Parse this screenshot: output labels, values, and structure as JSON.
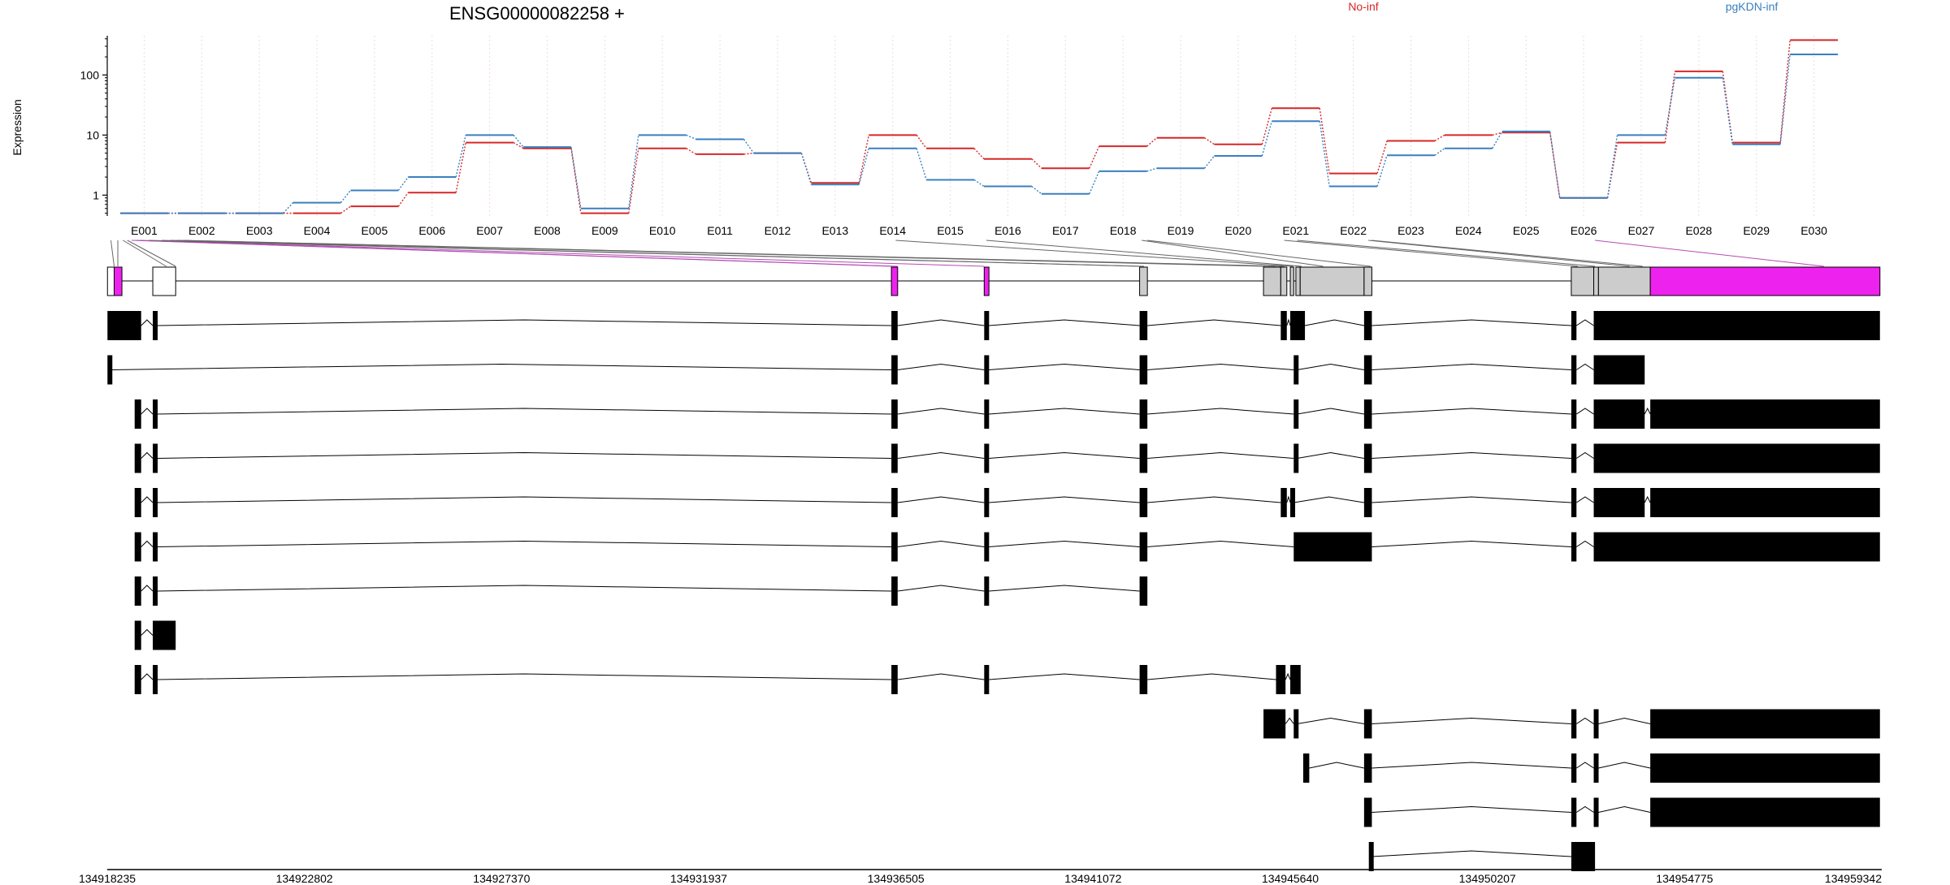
{
  "chart_data": {
    "type": "line",
    "title": "ENSG00000082258 +",
    "ylabel": "Expression",
    "xlabel": "",
    "y_scale": "log",
    "ylim": [
      0.45,
      450
    ],
    "y_ticks": [
      1,
      10,
      100
    ],
    "y_tick_labels": [
      "1",
      "10",
      "100"
    ],
    "grid": "vertical dotted lines at exon bins",
    "legend_position": "top",
    "colors": {
      "no_inf": "#d62728",
      "pgkdn_inf": "#3a7fbf",
      "highlight": "#ee22ee",
      "shared": "#cccccc"
    },
    "categories": [
      "E001",
      "E002",
      "E003",
      "E004",
      "E005",
      "E006",
      "E007",
      "E008",
      "E009",
      "E010",
      "E011",
      "E012",
      "E013",
      "E014",
      "E015",
      "E016",
      "E017",
      "E018",
      "E019",
      "E020",
      "E021",
      "E022",
      "E023",
      "E024",
      "E025",
      "E026",
      "E027",
      "E028",
      "E029",
      "E030"
    ],
    "series": [
      {
        "name": "No-inf",
        "color": "#d62728",
        "values": [
          0.5,
          0.5,
          0.5,
          0.5,
          0.65,
          1.1,
          7.5,
          6.0,
          0.5,
          6.0,
          4.8,
          5.0,
          1.6,
          10.0,
          6.0,
          4.0,
          2.8,
          6.5,
          9.0,
          7.0,
          28,
          2.3,
          8.0,
          10.0,
          11.0,
          0.9,
          7.5,
          115,
          7.5,
          380
        ]
      },
      {
        "name": "pgKDN-inf",
        "color": "#3a7fbf",
        "values": [
          0.5,
          0.5,
          0.5,
          0.75,
          1.2,
          2.0,
          10.0,
          6.3,
          0.6,
          10.0,
          8.5,
          5.0,
          1.5,
          6.0,
          1.8,
          1.4,
          1.05,
          2.5,
          2.8,
          4.5,
          17,
          1.4,
          4.6,
          6.0,
          11.5,
          0.9,
          10.0,
          90,
          7.0,
          220
        ]
      }
    ],
    "genome_axis": {
      "range": [
        134918235,
        134959342
      ],
      "tick_labels": [
        "134918235",
        "134922802",
        "134927370",
        "134931937",
        "134936505",
        "134941072",
        "134945640",
        "134950207",
        "134954775",
        "134959342"
      ]
    },
    "exon_bins": [
      [
        134918240,
        134918395,
        "white"
      ],
      [
        134918395,
        134918575,
        "highlight"
      ],
      [
        134919290,
        134919820,
        "white"
      ],
      [
        134936400,
        134936545,
        "highlight"
      ],
      [
        134938550,
        134938660,
        "highlight"
      ],
      [
        134942150,
        134942330,
        "shared"
      ],
      [
        134945020,
        134945420,
        "shared"
      ],
      [
        134945420,
        134945560,
        "shared"
      ],
      [
        134945640,
        134945720,
        "shared"
      ],
      [
        134945770,
        134945870,
        "shared"
      ],
      [
        134945870,
        134947350,
        "shared"
      ],
      [
        134947350,
        134947530,
        "shared"
      ],
      [
        134952150,
        134952670,
        "shared"
      ],
      [
        134952670,
        134952780,
        "shared"
      ],
      [
        134952780,
        134953980,
        "shared"
      ],
      [
        134953980,
        134959300,
        "highlight"
      ]
    ],
    "exon_bin_connectors": [
      [
        134918320,
        134918395
      ],
      [
        134918480,
        134918480
      ],
      [
        134918600,
        134919600
      ],
      [
        134918700,
        134919820
      ],
      [
        134918800,
        134936400
      ],
      [
        134918900,
        134936545
      ],
      [
        134919000,
        134938550
      ],
      [
        134919200,
        134942150
      ],
      [
        134919500,
        134942250
      ],
      [
        134919700,
        134945050
      ],
      [
        134919850,
        134945300
      ],
      [
        134920000,
        134945500
      ],
      [
        134936500,
        134945700
      ],
      [
        134938600,
        134945900
      ],
      [
        134942200,
        134946400
      ],
      [
        134942330,
        134947500
      ],
      [
        134945500,
        134952300
      ],
      [
        134945800,
        134952700
      ],
      [
        134947450,
        134953500
      ],
      [
        134947530,
        134953800
      ],
      [
        134952700,
        134958000
      ]
    ],
    "transcripts": [
      [
        [
          134918240,
          134919020
        ],
        [
          134919290,
          134919400
        ],
        [
          134936400,
          134936545
        ],
        [
          134938550,
          134938660
        ],
        [
          134942150,
          134942330
        ],
        [
          134945420,
          134945560
        ],
        [
          134945640,
          134945980
        ],
        [
          134947350,
          134947530
        ],
        [
          134952150,
          134952270
        ],
        [
          134952670,
          134959300
        ]
      ],
      [
        [
          134918240,
          134918330
        ],
        [
          134936400,
          134936545
        ],
        [
          134938550,
          134938660
        ],
        [
          134942150,
          134942330
        ],
        [
          134945720,
          134945800
        ],
        [
          134947350,
          134947530
        ],
        [
          134952150,
          134952270
        ],
        [
          134952670,
          134953850
        ]
      ],
      [
        [
          134918870,
          134919020
        ],
        [
          134919290,
          134919400
        ],
        [
          134936400,
          134936545
        ],
        [
          134938550,
          134938660
        ],
        [
          134942150,
          134942330
        ],
        [
          134945720,
          134945800
        ],
        [
          134947350,
          134947530
        ],
        [
          134952150,
          134952270
        ],
        [
          134952670,
          134953850
        ],
        [
          134953980,
          134959300
        ]
      ],
      [
        [
          134918870,
          134919020
        ],
        [
          134919290,
          134919400
        ],
        [
          134936400,
          134936545
        ],
        [
          134938550,
          134938660
        ],
        [
          134942150,
          134942330
        ],
        [
          134945720,
          134945800
        ],
        [
          134947350,
          134947530
        ],
        [
          134952150,
          134952270
        ],
        [
          134952670,
          134959300
        ]
      ],
      [
        [
          134918870,
          134919020
        ],
        [
          134919290,
          134919400
        ],
        [
          134936400,
          134936545
        ],
        [
          134938550,
          134938660
        ],
        [
          134942150,
          134942330
        ],
        [
          134945420,
          134945560
        ],
        [
          134945640,
          134945720
        ],
        [
          134947350,
          134947530
        ],
        [
          134952150,
          134952270
        ],
        [
          134952670,
          134953850
        ],
        [
          134953980,
          134959300
        ]
      ],
      [
        [
          134918870,
          134919020
        ],
        [
          134919290,
          134919400
        ],
        [
          134936400,
          134936545
        ],
        [
          134938550,
          134938660
        ],
        [
          134942150,
          134942330
        ],
        [
          134945720,
          134947530
        ],
        [
          134952150,
          134952270
        ],
        [
          134952670,
          134959300
        ]
      ],
      [
        [
          134918870,
          134919020
        ],
        [
          134919290,
          134919400
        ],
        [
          134936400,
          134936545
        ],
        [
          134938550,
          134938660
        ],
        [
          134942150,
          134942330
        ]
      ],
      [
        [
          134918870,
          134919020
        ],
        [
          134919290,
          134919820
        ]
      ],
      [
        [
          134918870,
          134919020
        ],
        [
          134919290,
          134919400
        ],
        [
          134936400,
          134936545
        ],
        [
          134938550,
          134938660
        ],
        [
          134942150,
          134942330
        ],
        [
          134945310,
          134945530
        ],
        [
          134945640,
          134945880
        ]
      ],
      [
        [
          134945020,
          134945530
        ],
        [
          134945720,
          134945800
        ],
        [
          134947350,
          134947530
        ],
        [
          134952150,
          134952270
        ],
        [
          134952670,
          134952780
        ],
        [
          134953980,
          134959300
        ]
      ],
      [
        [
          134945940,
          134946080
        ],
        [
          134947350,
          134947530
        ],
        [
          134952150,
          134952270
        ],
        [
          134952670,
          134952780
        ],
        [
          134953980,
          134959300
        ]
      ],
      [
        [
          134947350,
          134947530
        ],
        [
          134952150,
          134952270
        ],
        [
          134952670,
          134952780
        ],
        [
          134953980,
          134959300
        ]
      ],
      [
        [
          134947460,
          134947530
        ],
        [
          134952150,
          134952700
        ]
      ]
    ]
  }
}
